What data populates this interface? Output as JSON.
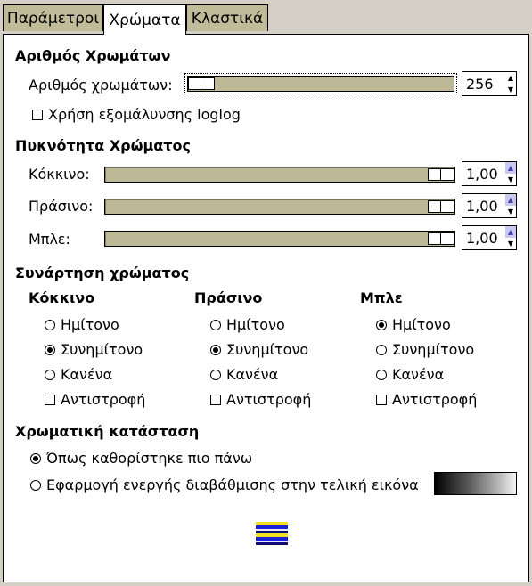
{
  "tabs": [
    "Παράμετροι",
    "Χρώματα",
    "Κλαστικά"
  ],
  "active_tab": 1,
  "num_colors": {
    "title": "Αριθμός Χρωμάτων",
    "label": "Αριθμός χρωμάτων:",
    "value": "256",
    "slider_fraction": 0.0,
    "loglog_label": "Χρήση εξομάλυνσης loglog",
    "loglog_checked": false
  },
  "density": {
    "title": "Πυκνότητα Χρώματος",
    "rows": [
      {
        "label": "Κόκκινο:",
        "value": "1,00",
        "fraction": 1.0
      },
      {
        "label": "Πράσινο:",
        "value": "1,00",
        "fraction": 1.0
      },
      {
        "label": "Μπλε:",
        "value": "1,00",
        "fraction": 1.0
      }
    ]
  },
  "function": {
    "title": "Συνάρτηση χρώματος",
    "options": [
      "Ημίτονο",
      "Συνημίτονο",
      "Κανένα"
    ],
    "invert_label": "Αντιστροφή",
    "channels": [
      {
        "name": "Κόκκινο",
        "selected": 1,
        "invert": false
      },
      {
        "name": "Πράσινο",
        "selected": 1,
        "invert": false
      },
      {
        "name": "Μπλε",
        "selected": 0,
        "invert": false
      }
    ]
  },
  "mode": {
    "title": "Χρωματική κατάσταση",
    "option1": "Όπως καθορίστηκε πιο πάνω",
    "option2": "Εφαρμογή ενεργής διαβάθμισης στην τελική εικόνα",
    "selected": 0
  },
  "colors": {
    "tab_inactive": "#c0bb98",
    "slider_trough": "#bdb896",
    "panel_bg": "#ffffff"
  }
}
